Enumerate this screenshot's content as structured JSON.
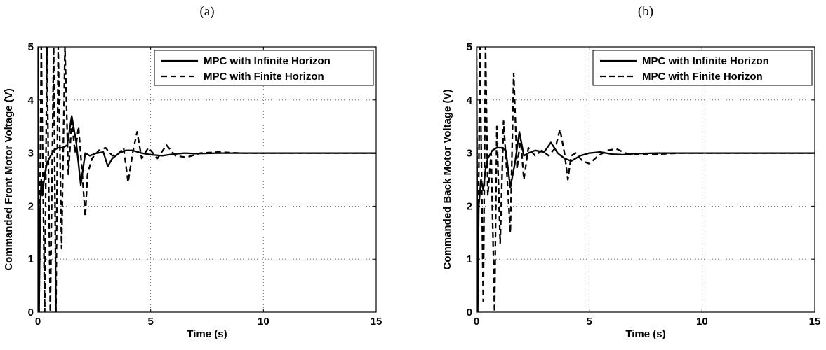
{
  "chart_data": [
    {
      "type": "line",
      "panel_label": "(a)",
      "xlabel": "Time (s)",
      "ylabel": "Commanded Front Motor Voltage (V)",
      "xlim": [
        0,
        15
      ],
      "ylim": [
        0,
        5
      ],
      "xticks": [
        0,
        5,
        10,
        15
      ],
      "yticks": [
        0,
        1,
        2,
        3,
        4,
        5
      ],
      "grid": true,
      "legend_position": "top-right",
      "series": [
        {
          "name": "MPC with Infinite Horizon",
          "style": "solid",
          "x": [
            0,
            0.05,
            0.1,
            0.15,
            0.2,
            0.3,
            0.4,
            0.5,
            0.7,
            0.9,
            1.1,
            1.3,
            1.5,
            1.7,
            1.9,
            2.1,
            2.3,
            2.6,
            2.9,
            3.1,
            3.3,
            3.6,
            3.9,
            4.2,
            4.6,
            5.0,
            5.5,
            6.0,
            6.5,
            7.0,
            8.0,
            9.0,
            10.0,
            12.0,
            15.0
          ],
          "y": [
            5.0,
            0.0,
            1.9,
            2.5,
            2.2,
            2.6,
            2.8,
            2.9,
            3.05,
            3.1,
            3.1,
            3.15,
            3.7,
            3.2,
            2.4,
            3.0,
            2.95,
            3.0,
            3.02,
            2.75,
            2.9,
            3.0,
            3.05,
            3.05,
            3.0,
            2.97,
            2.95,
            2.98,
            3.0,
            2.99,
            3.0,
            3.0,
            3.0,
            3.0,
            3.0
          ]
        },
        {
          "name": "MPC with Finite Horizon",
          "style": "dashed",
          "x": [
            0,
            0.05,
            0.15,
            0.3,
            0.4,
            0.55,
            0.7,
            0.8,
            0.9,
            1.05,
            1.2,
            1.35,
            1.5,
            1.65,
            1.8,
            1.95,
            2.1,
            2.2,
            2.4,
            2.7,
            3.0,
            3.3,
            3.6,
            3.8,
            4.0,
            4.2,
            4.4,
            4.6,
            4.9,
            5.3,
            5.7,
            6.1,
            6.6,
            7.2,
            8.0,
            9.0,
            10.0,
            12.0,
            15.0
          ],
          "y": [
            5.0,
            0.0,
            5.0,
            0.0,
            5.0,
            0.0,
            5.0,
            0.0,
            5.0,
            1.2,
            5.0,
            2.6,
            3.6,
            3.0,
            3.5,
            2.7,
            1.8,
            2.6,
            2.9,
            3.05,
            3.1,
            2.95,
            3.0,
            3.1,
            2.45,
            3.0,
            3.4,
            2.9,
            3.1,
            2.9,
            3.15,
            2.95,
            2.92,
            3.0,
            3.02,
            3.0,
            3.0,
            3.0,
            3.0
          ]
        }
      ]
    },
    {
      "type": "line",
      "panel_label": "(b)",
      "xlabel": "Time (s)",
      "ylabel": "Commanded Back Motor Voltage (V)",
      "xlim": [
        0,
        15
      ],
      "ylim": [
        0,
        5
      ],
      "xticks": [
        0,
        5,
        10,
        15
      ],
      "yticks": [
        0,
        1,
        2,
        3,
        4,
        5
      ],
      "grid": true,
      "legend_position": "top-right",
      "series": [
        {
          "name": "MPC with Infinite Horizon",
          "style": "solid",
          "x": [
            0,
            0.05,
            0.1,
            0.2,
            0.3,
            0.4,
            0.5,
            0.7,
            0.9,
            1.1,
            1.3,
            1.5,
            1.7,
            1.9,
            2.1,
            2.3,
            2.6,
            3.0,
            3.3,
            3.6,
            3.9,
            4.2,
            4.6,
            5.0,
            5.5,
            6.0,
            6.5,
            7.0,
            8.0,
            9.0,
            10.0,
            12.0,
            15.0
          ],
          "y": [
            5.0,
            0.0,
            2.0,
            2.5,
            2.3,
            2.7,
            2.9,
            3.05,
            3.1,
            3.1,
            3.05,
            2.35,
            2.8,
            3.4,
            2.95,
            3.0,
            3.05,
            3.02,
            3.2,
            3.0,
            2.9,
            2.85,
            2.95,
            3.0,
            3.02,
            2.98,
            2.97,
            2.99,
            3.0,
            3.0,
            3.0,
            3.0,
            3.0
          ]
        },
        {
          "name": "MPC with Finite Horizon",
          "style": "dashed",
          "x": [
            0,
            0.05,
            0.15,
            0.3,
            0.4,
            0.5,
            0.65,
            0.8,
            0.9,
            1.05,
            1.2,
            1.35,
            1.5,
            1.65,
            1.8,
            1.95,
            2.1,
            2.3,
            2.6,
            2.9,
            3.2,
            3.5,
            3.7,
            3.9,
            4.05,
            4.2,
            4.4,
            4.7,
            5.0,
            5.4,
            5.8,
            6.2,
            6.6,
            7.0,
            8.0,
            9.0,
            10.0,
            12.0,
            15.0
          ],
          "y": [
            5.0,
            0.0,
            5.0,
            0.2,
            5.0,
            2.2,
            3.0,
            0.0,
            3.5,
            1.3,
            3.6,
            2.6,
            1.5,
            4.5,
            2.7,
            3.3,
            2.5,
            3.1,
            2.95,
            3.05,
            2.95,
            3.1,
            3.45,
            3.0,
            2.5,
            2.95,
            3.0,
            2.85,
            2.8,
            2.95,
            3.05,
            3.08,
            3.0,
            2.97,
            2.98,
            3.0,
            3.0,
            3.0,
            3.0
          ]
        }
      ]
    }
  ]
}
